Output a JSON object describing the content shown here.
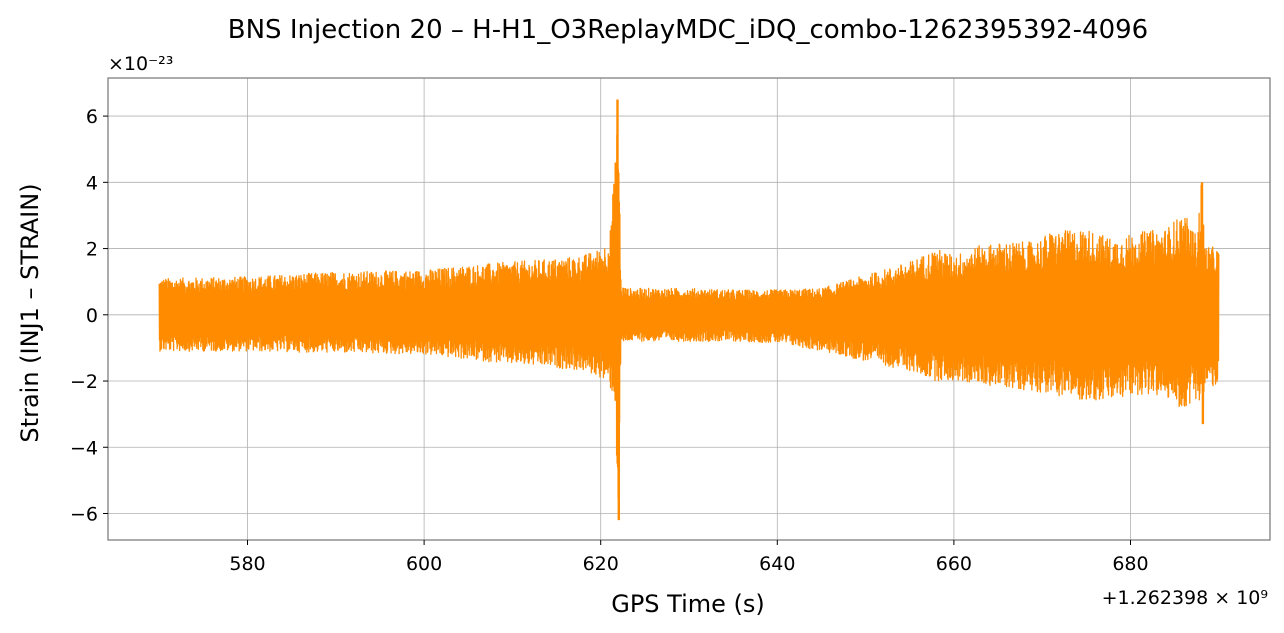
{
  "chart_data": {
    "type": "line",
    "title": "BNS Injection 20 – H-H1_O3ReplayMDC_iDQ_combo-1262395392-4096",
    "xlabel": "GPS Time (s)",
    "ylabel": "Strain (INJ1 – STRAIN)",
    "x_offset_text": "+1.262398 × 10⁹",
    "y_scale_text": "×10⁻²³",
    "xlim": [
      564.2,
      695.8
    ],
    "ylim": [
      -6.8,
      7.15
    ],
    "x_ticks": [
      580,
      600,
      620,
      640,
      660,
      680
    ],
    "x_tick_labels": [
      "580",
      "600",
      "620",
      "640",
      "660",
      "680"
    ],
    "y_ticks": [
      -6,
      -4,
      -2,
      0,
      2,
      4,
      6
    ],
    "y_tick_labels": [
      "−6",
      "−4",
      "−2",
      "0",
      "2",
      "4",
      "6"
    ],
    "grid": true,
    "line_color": "#ff8c00",
    "series": [
      {
        "x_range": [
          570,
          690
        ],
        "envelope_x": [
          570,
          580,
          590,
          600,
          605,
          610,
          615,
          618,
          620,
          621,
          621.6,
          622,
          622.3,
          623,
          625,
          630,
          635,
          640,
          645,
          650,
          655,
          658,
          660,
          663,
          666,
          669,
          671,
          675,
          678,
          681,
          684,
          686,
          687.5,
          688,
          688.5,
          690
        ],
        "envelope_upper": [
          1.1,
          1.15,
          1.3,
          1.35,
          1.5,
          1.6,
          1.7,
          1.8,
          2.0,
          2.3,
          4.5,
          6.5,
          0.9,
          0.8,
          0.8,
          0.8,
          0.75,
          0.75,
          0.8,
          1.2,
          1.6,
          2.0,
          1.8,
          2.1,
          2.2,
          2.2,
          2.5,
          2.6,
          2.3,
          2.5,
          2.6,
          3.1,
          2.4,
          4.0,
          2.1,
          2.0
        ],
        "envelope_lower": [
          -1.1,
          -1.1,
          -1.15,
          -1.2,
          -1.35,
          -1.5,
          -1.6,
          -1.7,
          -1.9,
          -2.2,
          -2.5,
          -6.2,
          -0.9,
          -0.8,
          -0.8,
          -0.8,
          -0.8,
          -0.85,
          -1.1,
          -1.4,
          -1.7,
          -2.0,
          -2.0,
          -2.1,
          -2.2,
          -2.3,
          -2.4,
          -2.6,
          -2.6,
          -2.4,
          -2.5,
          -2.9,
          -2.5,
          -3.3,
          -2.2,
          -2.2
        ]
      }
    ]
  }
}
